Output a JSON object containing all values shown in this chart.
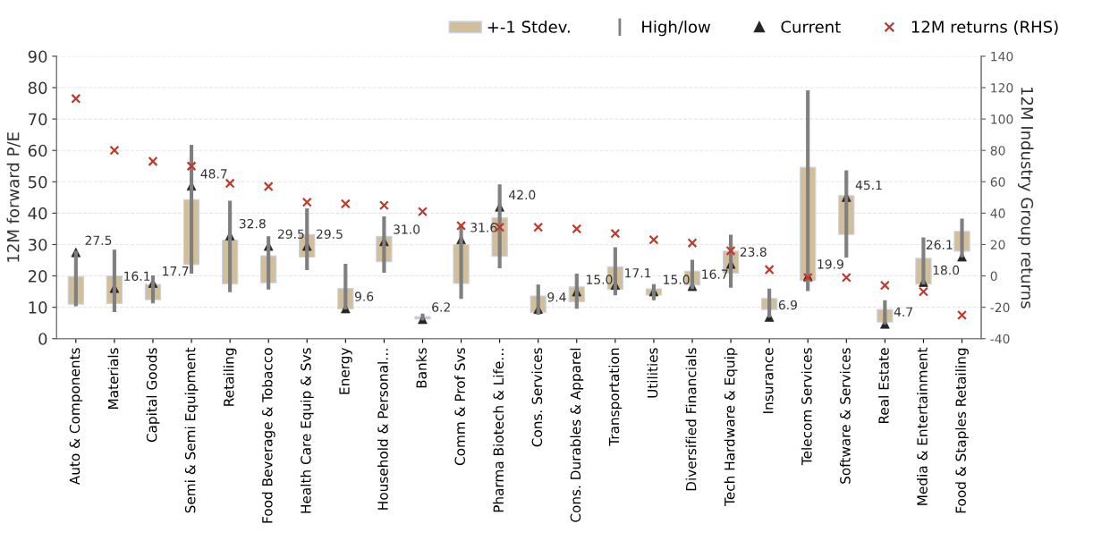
{
  "chart_data": {
    "type": "bar",
    "ylabel": "12M forward P/E",
    "y2label": "12M Industry Group returns",
    "categories": [
      "Auto & Components",
      "Materials",
      "Capital Goods",
      "Semi & Semi Equipment",
      "Retailing",
      "Food Beverage & Tobacco",
      "Health Care Equip & Svs",
      "Energy",
      "Household & Personal…",
      "Banks",
      "Comm & Prof Svs",
      "Pharma Biotech & Life…",
      "Cons. Services",
      "Cons. Durables & Apparel",
      "Transportation",
      "Utilities",
      "Diversified Financials",
      "Tech Hardware & Equip",
      "Insurance",
      "Telecom Services",
      "Software & Services",
      "Real Estate",
      "Media & Entertainment",
      "Food & Staples Retailing"
    ],
    "series": [
      {
        "name": "+-1 Stdev.",
        "type": "bar",
        "color": "#d2bf9a",
        "base": [
          11.0,
          11.2,
          12.4,
          23.6,
          17.5,
          17.8,
          26.0,
          9.5,
          24.5,
          6.3,
          17.6,
          26.2,
          8.4,
          11.8,
          15.7,
          13.9,
          17.1,
          20.9,
          9.3,
          18.5,
          33.2,
          5.3,
          17.4,
          27.9
        ],
        "values": [
          8.8,
          8.8,
          4.9,
          20.7,
          13.9,
          8.6,
          7.2,
          6.5,
          8.1,
          0.7,
          12.4,
          12.3,
          5.2,
          4.7,
          7.2,
          2.0,
          4.4,
          7.0,
          3.5,
          36.1,
          12.4,
          4.0,
          8.2,
          6.3
        ]
      },
      {
        "name": "High/low",
        "type": "bar",
        "color": "#7f7f7f",
        "base": [
          10.5,
          8.6,
          11.4,
          20.9,
          15.0,
          15.8,
          22.0,
          9.5,
          21.2,
          6.0,
          12.8,
          22.6,
          7.8,
          9.7,
          14.0,
          12.4,
          16.0,
          16.4,
          6.9,
          15.3,
          26.0,
          4.7,
          17.5,
          26.1
        ],
        "values": [
          17.3,
          19.6,
          8.6,
          40.7,
          28.8,
          16.7,
          19.4,
          14.2,
          17.6,
          1.8,
          23.4,
          26.4,
          9.3,
          10.9,
          15.0,
          4.8,
          9.0,
          16.6,
          8.9,
          63.7,
          27.5,
          7.4,
          14.6,
          12.0
        ]
      },
      {
        "name": "Current",
        "type": "scatter",
        "marker": "triangle",
        "color": "#262626",
        "values": [
          27.5,
          16.1,
          17.7,
          48.7,
          32.8,
          29.5,
          29.5,
          9.6,
          31.0,
          6.2,
          31.6,
          42.0,
          9.4,
          15.0,
          17.1,
          15.0,
          16.7,
          23.8,
          6.9,
          19.9,
          45.1,
          4.7,
          18.0,
          26.1
        ],
        "value_labels": [
          "27.5",
          "16.1",
          "17.7",
          "48.7",
          "32.8",
          "29.5",
          "29.5",
          "9.6",
          "31.0",
          "6.2",
          "31.6",
          "42.0",
          "9.4",
          "15.0",
          "17.1",
          "15.0",
          "16.7",
          "23.8",
          "6.9",
          "19.9",
          "45.1",
          "4.7",
          "18.0",
          "26.1"
        ]
      },
      {
        "name": "12M returns (RHS)",
        "type": "scatter",
        "marker": "cross",
        "axis": "y2",
        "color": "#c0392b",
        "values": [
          113,
          80,
          73,
          70,
          59,
          57,
          47,
          46,
          45,
          41,
          32,
          31,
          31,
          30,
          27,
          23,
          21,
          16,
          4,
          -1,
          -1,
          -6,
          -10,
          -25
        ]
      }
    ],
    "ylim": [
      0,
      90
    ],
    "yticks": [
      0,
      10,
      20,
      30,
      40,
      50,
      60,
      70,
      80,
      90
    ],
    "y2lim": [
      -40,
      140
    ],
    "y2ticks": [
      -40,
      -20,
      0,
      20,
      40,
      60,
      80,
      100,
      120,
      140
    ],
    "grid": "y",
    "legend": "top right"
  }
}
